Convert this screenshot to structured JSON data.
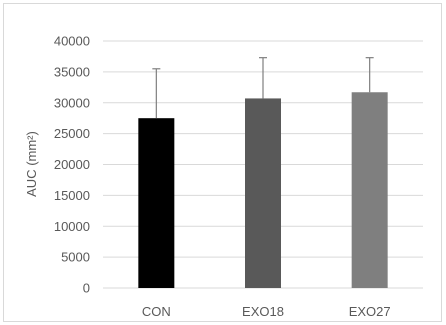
{
  "chart_data": {
    "type": "bar",
    "title": "",
    "xlabel": "",
    "ylabel": "AUC (mm²)",
    "categories": [
      "CON",
      "EXO18",
      "EXO27"
    ],
    "values": [
      27500,
      30700,
      31700
    ],
    "error_upper": [
      8000,
      6600,
      5600
    ],
    "ylim": [
      0,
      40000
    ],
    "yticks": [
      0,
      5000,
      10000,
      15000,
      20000,
      25000,
      30000,
      35000,
      40000
    ],
    "grid": true,
    "legend": "none",
    "colors": [
      "#000000",
      "#595959",
      "#7f7f7f"
    ],
    "gridline_color": "#d9d9d9",
    "errorbar_color": "#7f7f7f",
    "text_color": "#595959"
  }
}
